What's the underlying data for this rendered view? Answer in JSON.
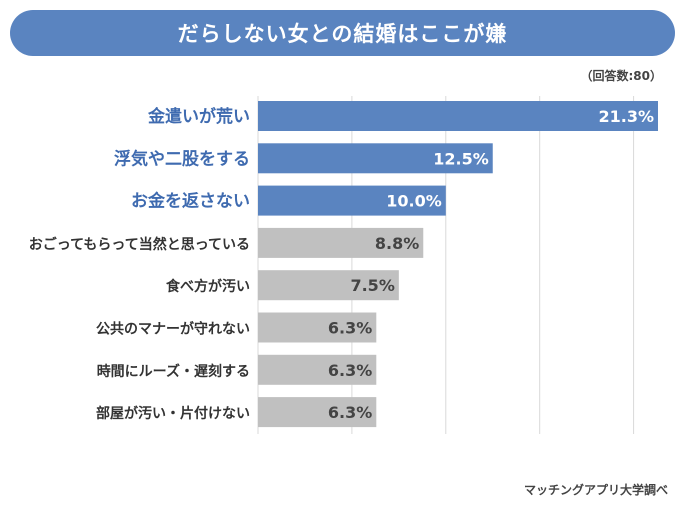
{
  "title": "だらしない女との結婚はここが嫌",
  "sample_note": "（回答数:80）",
  "source": "マッチングアプリ大学調べ",
  "colors": {
    "highlight": "#5a84c0",
    "other": "#c0c0c0",
    "highlight_label": "#3f6bb0",
    "other_label": "#333333"
  },
  "chart_data": {
    "type": "bar",
    "orientation": "horizontal",
    "title": "だらしない女との結婚はここが嫌",
    "xlim": [
      0,
      21.3
    ],
    "grid": true,
    "categories": [
      "金遣いが荒い",
      "浮気や二股をする",
      "お金を返さない",
      "おごってもらって当然と思っている",
      "食べ方が汚い",
      "公共のマナーが守れない",
      "時間にルーズ・遅刻する",
      "部屋が汚い・片付けない"
    ],
    "values": [
      21.3,
      12.5,
      10.0,
      8.8,
      7.5,
      6.3,
      6.3,
      6.3
    ],
    "value_labels": [
      "21.3%",
      "12.5%",
      "10.0%",
      "8.8%",
      "7.5%",
      "6.3%",
      "6.3%",
      "6.3%"
    ],
    "highlighted": [
      true,
      true,
      true,
      false,
      false,
      false,
      false,
      false
    ]
  }
}
